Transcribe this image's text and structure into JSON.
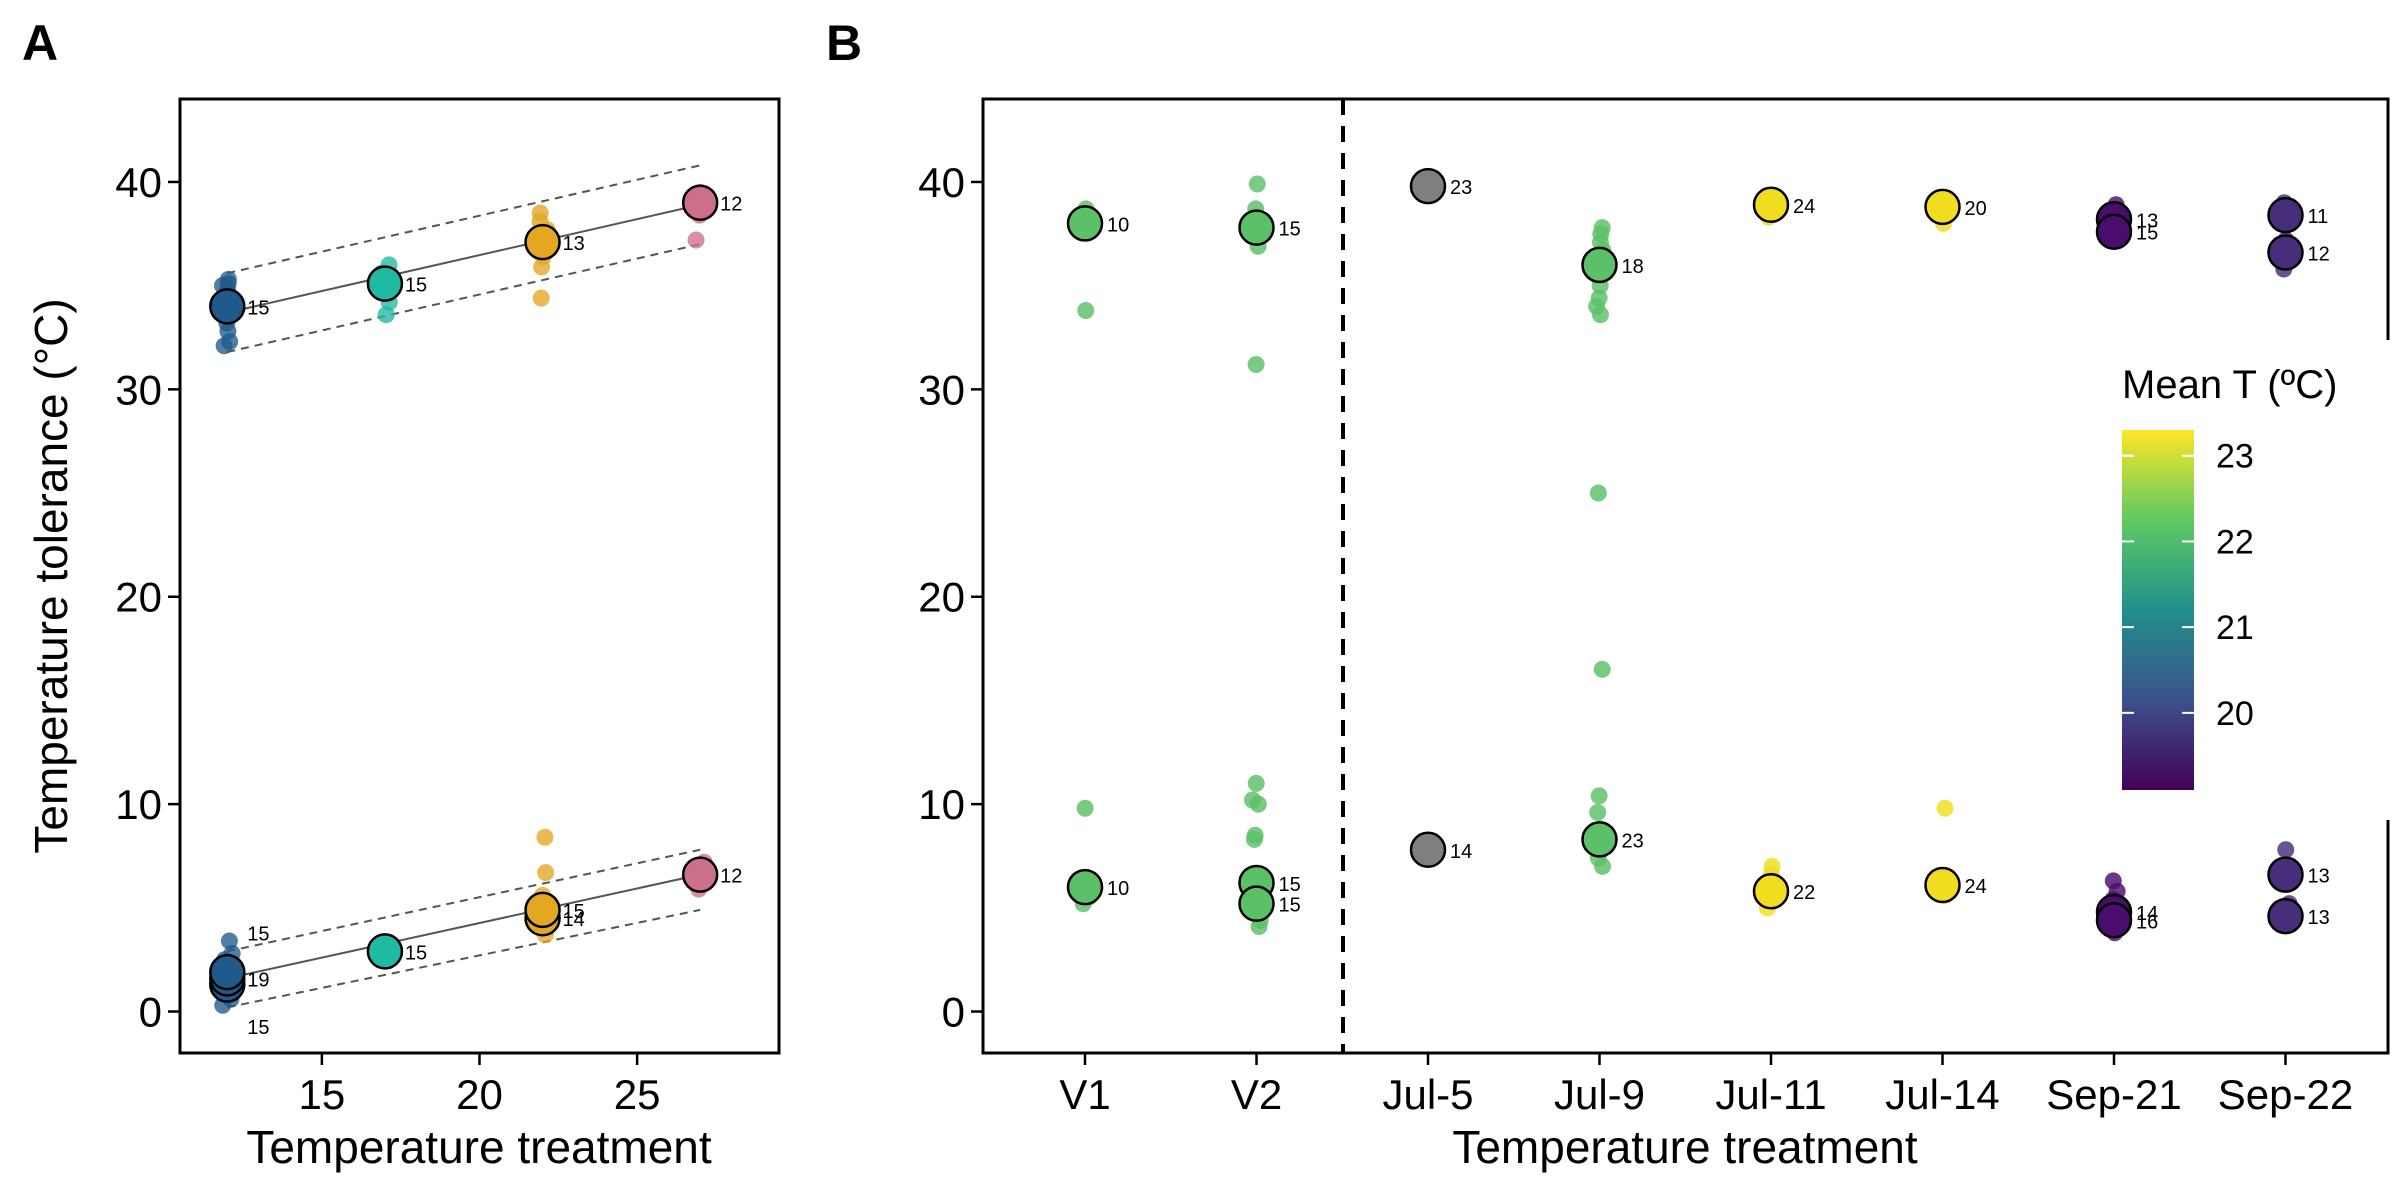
{
  "colors": {
    "t12": "#1f5a8a",
    "t17": "#20b9a1",
    "t22": "#e3a722",
    "t27": "#cc6f8b",
    "na": "#7f7f7f"
  },
  "chart_data": [
    {
      "panel": "A",
      "type": "scatter",
      "xlabel": "Temperature treatment",
      "ylabel": "Temperature tolerance (°C)",
      "xlim": [
        10.5,
        29.5
      ],
      "ylim": [
        -2,
        44
      ],
      "xticks": [
        15,
        20,
        25
      ],
      "yticks": [
        0,
        10,
        20,
        30,
        40
      ],
      "groups": [
        {
          "x": 12,
          "color": "t12",
          "points": [
            32.1,
            32.3,
            32.8,
            33.2,
            33.6,
            34.0,
            34.2,
            34.4,
            34.6,
            34.8,
            35.0,
            35.1,
            35.3,
            1.2,
            1.5,
            1.8,
            2.2,
            2.5,
            2.8,
            3.4,
            0.6,
            0.9,
            0.3
          ]
        },
        {
          "x": 17,
          "color": "t17",
          "points": [
            33.6,
            34.2,
            34.8,
            35.2,
            35.6,
            36.0,
            2.7,
            2.9,
            3.1
          ]
        },
        {
          "x": 22,
          "color": "t22",
          "points": [
            34.4,
            35.9,
            36.4,
            36.9,
            37.3,
            37.7,
            38.1,
            38.5,
            3.7,
            4.1,
            4.5,
            5.0,
            5.6,
            6.7,
            8.4
          ]
        },
        {
          "x": 27,
          "color": "t27",
          "points": [
            37.2,
            38.4,
            38.8,
            39.2,
            39.5,
            5.9,
            6.3,
            6.8,
            7.2
          ]
        }
      ],
      "means": [
        {
          "x": 12,
          "y": 34.0,
          "n": "15"
        },
        {
          "x": 17,
          "y": 35.1,
          "n": "15"
        },
        {
          "x": 22,
          "y": 37.1,
          "n": "13"
        },
        {
          "x": 27,
          "y": 39.0,
          "n": "12"
        },
        {
          "x": 12,
          "y": 1.3,
          "n": ""
        },
        {
          "x": 12,
          "y": 1.6,
          "n": "19"
        },
        {
          "x": 12,
          "y": 1.9,
          "n": ""
        },
        {
          "x": 17,
          "y": 2.9,
          "n": "15"
        },
        {
          "x": 22,
          "y": 4.5,
          "n": "14"
        },
        {
          "x": 22,
          "y": 4.9,
          "n": "15"
        },
        {
          "x": 27,
          "y": 6.6,
          "n": "12"
        }
      ],
      "extra_labels": [
        {
          "x": 12,
          "y": 3.8,
          "n": "15"
        },
        {
          "x": 12,
          "y": -0.7,
          "n": "15"
        }
      ],
      "fits": [
        {
          "x": [
            12,
            27
          ],
          "y": [
            33.7,
            38.9
          ],
          "lower": [
            31.8,
            37.0
          ],
          "upper": [
            35.6,
            40.8
          ]
        },
        {
          "x": [
            12,
            27
          ],
          "y": [
            1.6,
            6.6
          ],
          "lower": [
            0.2,
            4.9
          ],
          "upper": [
            2.9,
            7.8
          ]
        }
      ]
    },
    {
      "panel": "B",
      "type": "scatter",
      "xlabel": "Temperature treatment",
      "ylabel": "",
      "categories": [
        "V1",
        "V2",
        "Jul-5",
        "Jul-9",
        "Jul-11",
        "Jul-14",
        "Sep-21",
        "Sep-22"
      ],
      "ylim": [
        -2,
        44
      ],
      "yticks": [
        0,
        10,
        20,
        30,
        40
      ],
      "divider_after_index": 1,
      "groups": [
        {
          "cat": "V1",
          "color": "#5cc068",
          "points": [
            38.1,
            38.4,
            38.7,
            33.8,
            9.8,
            5.2,
            5.5,
            5.8,
            6.2
          ]
        },
        {
          "cat": "V2",
          "color": "#5cc068",
          "points": [
            36.9,
            37.4,
            37.9,
            38.3,
            38.7,
            39.9,
            31.2,
            11.0,
            10.2,
            10.0,
            8.5,
            8.3,
            4.1,
            4.4,
            4.8,
            5.2,
            5.6
          ]
        },
        {
          "cat": "Jul-5",
          "color": "#7f7f7f",
          "points": [
            39.6,
            39.8,
            7.6,
            7.9
          ]
        },
        {
          "cat": "Jul-9",
          "color": "#5cc068",
          "points": [
            33.6,
            34.0,
            34.4,
            35.0,
            35.6,
            36.2,
            36.7,
            37.1,
            37.5,
            37.8,
            25.0,
            16.5,
            10.4,
            9.6,
            8.8,
            8.0,
            7.4,
            7.0
          ]
        },
        {
          "cat": "Jul-11",
          "color": "#f0dd1f",
          "points": [
            38.3,
            38.6,
            38.9,
            39.2,
            5.0,
            5.4,
            5.8,
            6.2,
            6.6,
            7.0
          ]
        },
        {
          "cat": "Jul-14",
          "color": "#f0dd1f",
          "points": [
            38.0,
            38.5,
            38.9,
            39.2,
            9.8,
            5.6,
            6.0,
            6.4
          ]
        },
        {
          "cat": "Sep-21",
          "color": "#4a0d6e",
          "points": [
            37.3,
            37.7,
            38.1,
            38.5,
            38.9,
            3.8,
            4.2,
            4.6,
            5.0,
            5.4,
            5.8,
            6.3
          ]
        },
        {
          "cat": "Sep-22",
          "color": "#472e7a",
          "points": [
            35.8,
            36.3,
            36.8,
            37.2,
            38.2,
            38.6,
            39.0,
            4.4,
            4.8,
            5.2,
            6.2,
            6.8,
            7.8
          ]
        }
      ],
      "means": [
        {
          "cat": "V1",
          "y": 38.0,
          "n": "10"
        },
        {
          "cat": "V1",
          "y": 6.0,
          "n": "10"
        },
        {
          "cat": "V2",
          "y": 37.8,
          "n": "15"
        },
        {
          "cat": "V2",
          "y": 6.2,
          "n": "15"
        },
        {
          "cat": "V2",
          "y": 5.2,
          "n": "15"
        },
        {
          "cat": "Jul-5",
          "y": 39.8,
          "n": "23"
        },
        {
          "cat": "Jul-5",
          "y": 7.8,
          "n": "14"
        },
        {
          "cat": "Jul-9",
          "y": 36.0,
          "n": "18"
        },
        {
          "cat": "Jul-9",
          "y": 8.3,
          "n": "23"
        },
        {
          "cat": "Jul-11",
          "y": 38.9,
          "n": "24"
        },
        {
          "cat": "Jul-11",
          "y": 5.8,
          "n": "22"
        },
        {
          "cat": "Jul-14",
          "y": 38.8,
          "n": "20"
        },
        {
          "cat": "Jul-14",
          "y": 6.1,
          "n": "24"
        },
        {
          "cat": "Sep-21",
          "y": 38.2,
          "n": "13"
        },
        {
          "cat": "Sep-21",
          "y": 37.6,
          "n": "15"
        },
        {
          "cat": "Sep-21",
          "y": 4.8,
          "n": "14"
        },
        {
          "cat": "Sep-21",
          "y": 4.4,
          "n": "16"
        },
        {
          "cat": "Sep-22",
          "y": 38.4,
          "n": "11"
        },
        {
          "cat": "Sep-22",
          "y": 36.6,
          "n": "12"
        },
        {
          "cat": "Sep-22",
          "y": 6.6,
          "n": "13"
        },
        {
          "cat": "Sep-22",
          "y": 4.6,
          "n": "13"
        }
      ],
      "legend": {
        "title": "Mean T (ºC)",
        "range": [
          19.1,
          23.3
        ],
        "ticks": [
          20,
          21,
          22,
          23
        ],
        "palette": [
          "#440154",
          "#3b528b",
          "#21908c",
          "#5ec962",
          "#fde725"
        ],
        "placement": "right"
      }
    }
  ],
  "panel_labels": {
    "a": "A",
    "b": "B"
  },
  "panelA": {
    "xlabel": "Temperature treatment",
    "ylabel": "Temperature tolerance (°C)"
  },
  "panelB": {
    "xlabel": "Temperature treatment",
    "legend_title": "Mean T (ºC)"
  }
}
